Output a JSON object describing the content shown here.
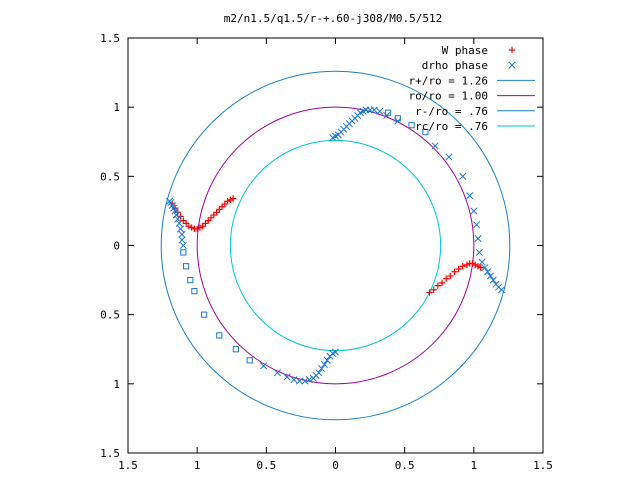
{
  "chart_data": {
    "type": "scatter",
    "title": "m2/n1.5/q1.5/r-+.60-j308/M0.5/512",
    "xlabel": "",
    "ylabel": "",
    "xlim": [
      -1.5,
      1.5
    ],
    "ylim": [
      -1.5,
      1.5
    ],
    "x_tick_labels": [
      "1.5",
      "1",
      "0.5",
      "0",
      "0.5",
      "1",
      "1.5"
    ],
    "x_tick_values": [
      -1.5,
      -1,
      -0.5,
      0,
      0.5,
      1,
      1.5
    ],
    "y_tick_labels": [
      "1.5",
      "1",
      "0.5",
      "0",
      "0.5",
      "1",
      "1.5"
    ],
    "y_tick_values": [
      1.5,
      1,
      0.5,
      0,
      -0.5,
      -1,
      -1.5
    ],
    "grid": false,
    "legend_position": "top-right",
    "legend": [
      {
        "label": "W phase",
        "kind": "plus",
        "color": "#ff0000"
      },
      {
        "label": "drho phase",
        "kind": "cross",
        "color": "#1a75d6"
      },
      {
        "label": "r+/ro = 1.26",
        "kind": "line",
        "color": "#1a7fc8"
      },
      {
        "label": "ro/ro = 1.00",
        "kind": "line",
        "color": "#a000a0"
      },
      {
        "label": "r-/ro = .76",
        "kind": "line",
        "color": "#1a7fc8"
      },
      {
        "label": "rc/ro = .76",
        "kind": "line",
        "color": "#00c8c8"
      }
    ],
    "circles": [
      {
        "name": "r+/ro = 1.26",
        "radius": 1.26,
        "color": "#1a7fc8"
      },
      {
        "name": "ro/ro = 1.00",
        "radius": 1.0,
        "color": "#a000a0"
      },
      {
        "name": "rc/ro = .76",
        "radius": 0.76,
        "color": "#00c8c8"
      }
    ],
    "series": [
      {
        "name": "W phase",
        "marker": "plus",
        "color": "#ff0000",
        "points": [
          [
            -1.18,
            0.3
          ],
          [
            -1.16,
            0.27
          ],
          [
            -1.14,
            0.24
          ],
          [
            -1.12,
            0.21
          ],
          [
            -1.1,
            0.18
          ],
          [
            -1.08,
            0.16
          ],
          [
            -1.06,
            0.14
          ],
          [
            -1.04,
            0.13
          ],
          [
            -1.02,
            0.12
          ],
          [
            -1.0,
            0.12
          ],
          [
            -0.98,
            0.13
          ],
          [
            -0.96,
            0.14
          ],
          [
            -0.94,
            0.16
          ],
          [
            -0.92,
            0.18
          ],
          [
            -0.9,
            0.2
          ],
          [
            -0.88,
            0.22
          ],
          [
            -0.86,
            0.24
          ],
          [
            -0.84,
            0.26
          ],
          [
            -0.82,
            0.28
          ],
          [
            -0.8,
            0.3
          ],
          [
            -0.78,
            0.32
          ],
          [
            -0.76,
            0.33
          ],
          [
            -0.74,
            0.34
          ],
          [
            0.68,
            -0.34
          ],
          [
            0.71,
            -0.32
          ],
          [
            0.74,
            -0.29
          ],
          [
            0.77,
            -0.27
          ],
          [
            0.8,
            -0.24
          ],
          [
            0.83,
            -0.22
          ],
          [
            0.86,
            -0.19
          ],
          [
            0.89,
            -0.17
          ],
          [
            0.92,
            -0.15
          ],
          [
            0.95,
            -0.14
          ],
          [
            0.97,
            -0.13
          ],
          [
            0.99,
            -0.13
          ],
          [
            1.01,
            -0.14
          ],
          [
            1.03,
            -0.15
          ],
          [
            1.05,
            -0.16
          ]
        ]
      },
      {
        "name": "drho phase",
        "marker": "cross",
        "color": "#1a75d6",
        "points": [
          [
            -1.2,
            0.32
          ],
          [
            -1.19,
            0.31
          ],
          [
            -1.18,
            0.29
          ],
          [
            -1.17,
            0.27
          ],
          [
            -1.16,
            0.25
          ],
          [
            -1.15,
            0.22
          ],
          [
            -1.14,
            0.19
          ],
          [
            -1.13,
            0.16
          ],
          [
            -1.12,
            0.12
          ],
          [
            -1.11,
            0.08
          ],
          [
            -1.11,
            0.04
          ],
          [
            -1.1,
            0.0
          ],
          [
            -0.02,
            0.78
          ],
          [
            0.0,
            0.79
          ],
          [
            0.02,
            0.8
          ],
          [
            0.04,
            0.82
          ],
          [
            0.06,
            0.84
          ],
          [
            0.08,
            0.86
          ],
          [
            0.1,
            0.88
          ],
          [
            0.12,
            0.9
          ],
          [
            0.14,
            0.92
          ],
          [
            0.16,
            0.94
          ],
          [
            0.18,
            0.96
          ],
          [
            0.2,
            0.97
          ],
          [
            0.22,
            0.98
          ],
          [
            0.25,
            0.98
          ],
          [
            0.28,
            0.98
          ],
          [
            0.32,
            0.97
          ],
          [
            0.37,
            0.94
          ],
          [
            0.45,
            0.9
          ],
          [
            0.72,
            0.72
          ],
          [
            0.82,
            0.64
          ],
          [
            0.92,
            0.5
          ],
          [
            0.97,
            0.36
          ],
          [
            1.0,
            0.25
          ],
          [
            1.02,
            0.15
          ],
          [
            1.03,
            0.05
          ],
          [
            1.04,
            -0.05
          ],
          [
            1.06,
            -0.12
          ],
          [
            1.08,
            -0.16
          ],
          [
            1.1,
            -0.19
          ],
          [
            1.12,
            -0.22
          ],
          [
            1.14,
            -0.25
          ],
          [
            1.16,
            -0.28
          ],
          [
            1.18,
            -0.3
          ],
          [
            1.2,
            -0.32
          ],
          [
            0.0,
            -0.77
          ],
          [
            -0.02,
            -0.78
          ],
          [
            -0.04,
            -0.8
          ],
          [
            -0.06,
            -0.83
          ],
          [
            -0.08,
            -0.86
          ],
          [
            -0.1,
            -0.89
          ],
          [
            -0.12,
            -0.92
          ],
          [
            -0.14,
            -0.94
          ],
          [
            -0.16,
            -0.96
          ],
          [
            -0.19,
            -0.97
          ],
          [
            -0.22,
            -0.98
          ],
          [
            -0.26,
            -0.98
          ],
          [
            -0.3,
            -0.97
          ],
          [
            -0.35,
            -0.95
          ],
          [
            -0.42,
            -0.92
          ],
          [
            -0.52,
            -0.87
          ]
        ]
      },
      {
        "name": "drho phase (squares)",
        "marker": "square",
        "color": "#1a75d6",
        "points": [
          [
            -1.1,
            -0.05
          ],
          [
            -1.08,
            -0.15
          ],
          [
            -1.05,
            -0.25
          ],
          [
            -1.02,
            -0.33
          ],
          [
            -0.95,
            -0.5
          ],
          [
            -0.84,
            -0.65
          ],
          [
            -0.72,
            -0.75
          ],
          [
            -0.62,
            -0.83
          ],
          [
            0.38,
            0.96
          ],
          [
            0.45,
            0.92
          ],
          [
            0.55,
            0.87
          ],
          [
            0.65,
            0.82
          ]
        ]
      }
    ]
  }
}
